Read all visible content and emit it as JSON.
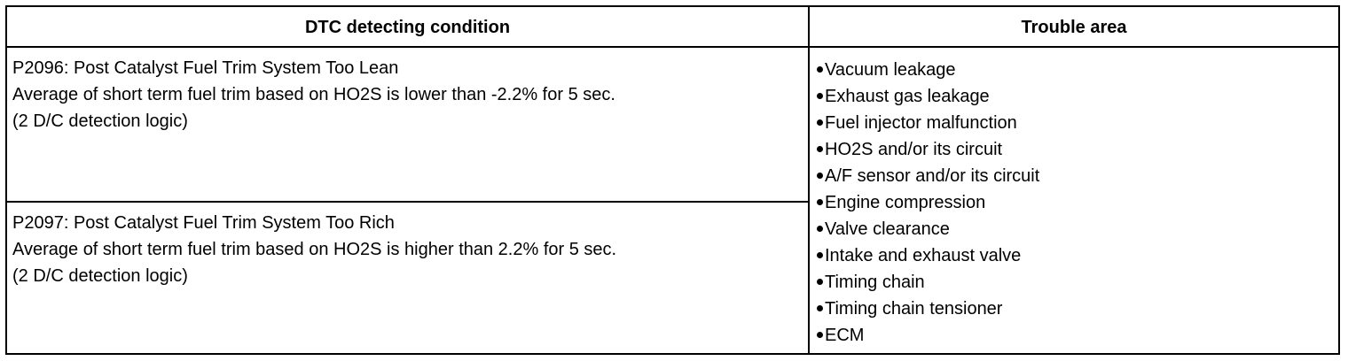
{
  "table": {
    "header": {
      "condition": "DTC detecting condition",
      "trouble_area": "Trouble area"
    },
    "rows": [
      {
        "lines": [
          "P2096: Post Catalyst Fuel Trim System Too Lean",
          "Average of short term fuel trim based on HO2S is lower than -2.2% for 5 sec.",
          "(2 D/C detection logic)"
        ]
      },
      {
        "lines": [
          "P2097: Post Catalyst Fuel Trim System Too Rich",
          "Average of short term fuel trim based on HO2S is higher than 2.2% for 5 sec.",
          "(2 D/C detection logic)"
        ]
      }
    ],
    "trouble_areas": [
      "Vacuum leakage",
      "Exhaust gas leakage",
      "Fuel injector malfunction",
      "HO2S and/or its circuit",
      "A/F sensor and/or its circuit",
      "Engine compression",
      "Valve clearance",
      "Intake and exhaust valve",
      "Timing chain",
      "Timing chain tensioner",
      "ECM"
    ]
  }
}
